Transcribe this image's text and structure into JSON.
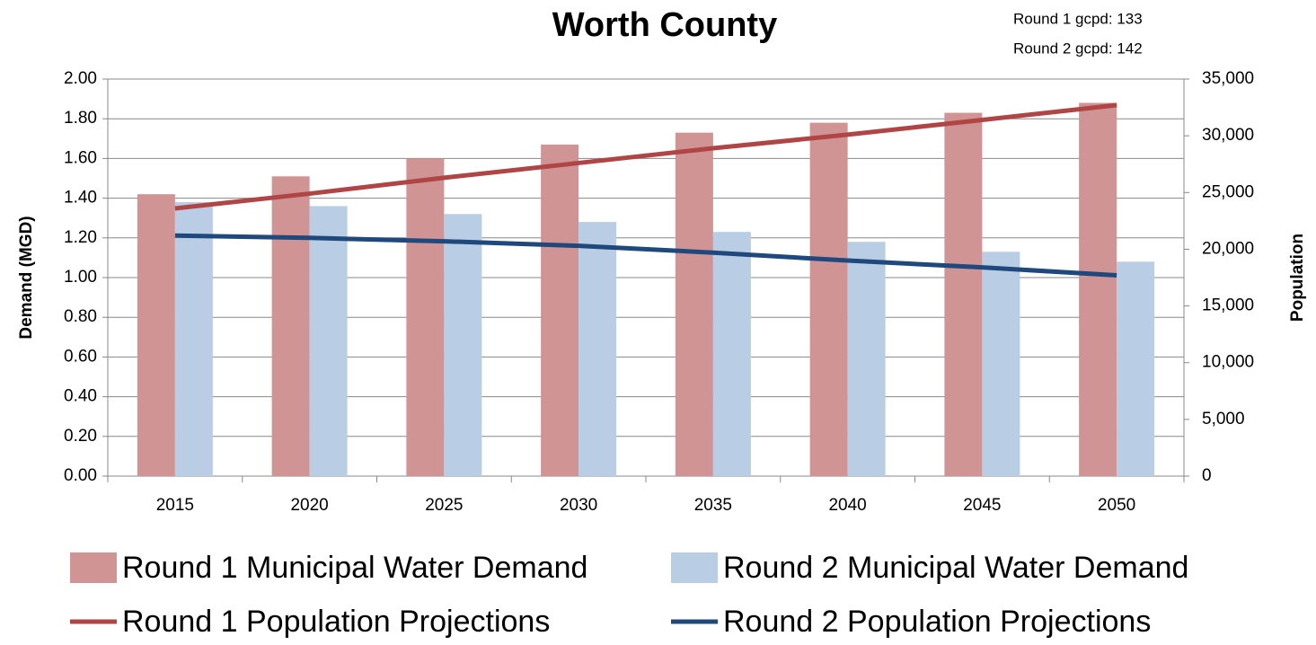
{
  "chart_data": {
    "type": "bar_line",
    "title": "Worth County",
    "annotations": [
      "Round 1 gcpd: 133",
      "Round 2 gcpd: 142"
    ],
    "y_label": "Demand (MGD)",
    "y2_label": "Population",
    "categories": [
      "2015",
      "2020",
      "2025",
      "2030",
      "2035",
      "2040",
      "2045",
      "2050"
    ],
    "series": [
      {
        "name": "Round 1 Municipal Water Demand",
        "type": "bar",
        "color": "#d09494",
        "values": [
          1.42,
          1.51,
          1.6,
          1.67,
          1.73,
          1.78,
          1.83,
          1.88
        ]
      },
      {
        "name": "Round 2 Municipal Water Demand",
        "type": "bar",
        "color": "#b9cde5",
        "values": [
          1.38,
          1.36,
          1.32,
          1.28,
          1.23,
          1.18,
          1.13,
          1.08
        ]
      },
      {
        "name": "Round 1 Population Projections",
        "type": "line",
        "axis": "y2",
        "color": "#b04545",
        "values": [
          23600,
          24900,
          26300,
          27600,
          28900,
          30100,
          31400,
          32700
        ]
      },
      {
        "name": "Round 2 Population Projections",
        "type": "line",
        "axis": "y2",
        "color": "#1f497d",
        "values": [
          21200,
          21000,
          20700,
          20300,
          19700,
          19000,
          18400,
          17700
        ]
      }
    ],
    "ylim": [
      0,
      2
    ],
    "yticks": [
      {
        "value": 0,
        "label": "0.00"
      },
      {
        "value": 0.2,
        "label": "0.20"
      },
      {
        "value": 0.4,
        "label": "0.40"
      },
      {
        "value": 0.6,
        "label": "0.60"
      },
      {
        "value": 0.8,
        "label": "0.80"
      },
      {
        "value": 1,
        "label": "1.00"
      },
      {
        "value": 1.2,
        "label": "1.20"
      },
      {
        "value": 1.4,
        "label": "1.40"
      },
      {
        "value": 1.6,
        "label": "1.60"
      },
      {
        "value": 1.8,
        "label": "1.80"
      },
      {
        "value": 2,
        "label": "2.00"
      }
    ],
    "y2lim": [
      0,
      35000
    ],
    "y2ticks": [
      0,
      {
        "value": 5000,
        "label": "5,000"
      },
      {
        "value": 10000,
        "label": "10,000"
      },
      {
        "value": 15000,
        "label": "15,000"
      },
      {
        "value": 20000,
        "label": "20,000"
      },
      {
        "value": 25000,
        "label": "25,000"
      },
      {
        "value": 30000,
        "label": "30,000"
      },
      {
        "value": 35000,
        "label": "35,000"
      }
    ],
    "grid": true,
    "legend": "bottom"
  }
}
